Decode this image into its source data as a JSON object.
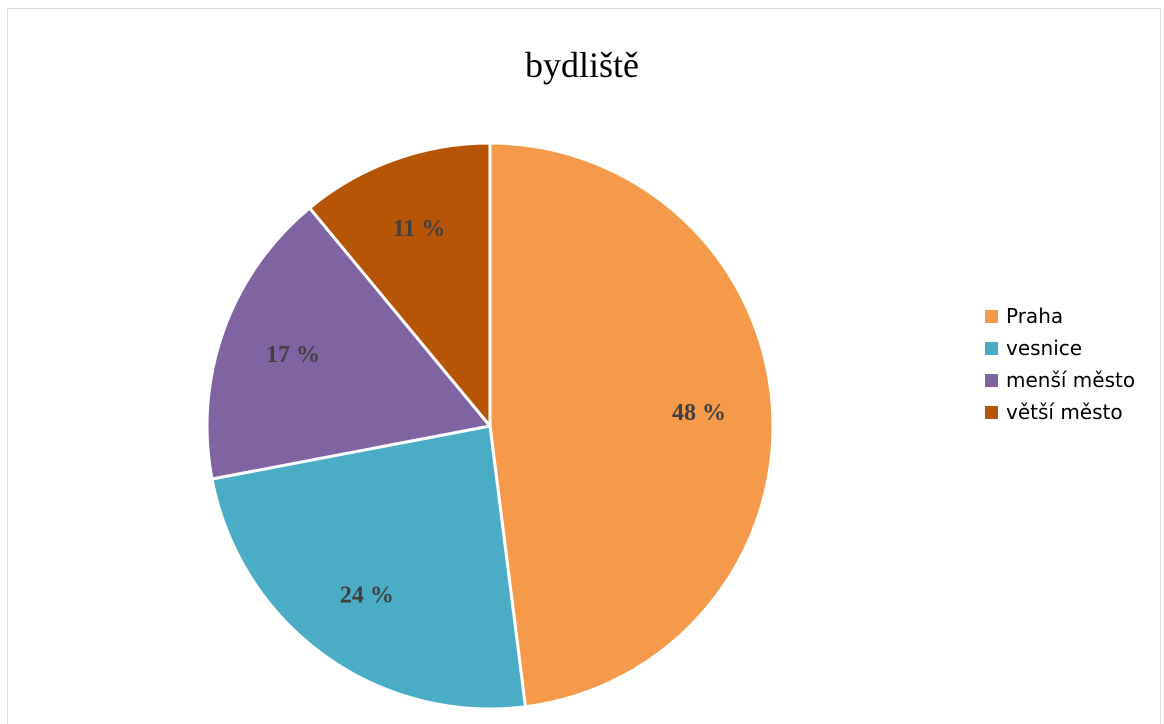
{
  "chart_data": {
    "type": "pie",
    "title": "bydliště",
    "series": [
      {
        "name": "Praha",
        "value": 48,
        "label": "48 %",
        "color": "#f59a4a"
      },
      {
        "name": "vesnice",
        "value": 24,
        "label": "24 %",
        "color": "#4bacc6"
      },
      {
        "name": "menší město",
        "value": 17,
        "label": "17 %",
        "color": "#8064a2"
      },
      {
        "name": "větší město",
        "value": 11,
        "label": "11 %",
        "color": "#b75506"
      }
    ],
    "legend_position": "right",
    "start_angle_deg": 0,
    "direction": "clockwise"
  }
}
